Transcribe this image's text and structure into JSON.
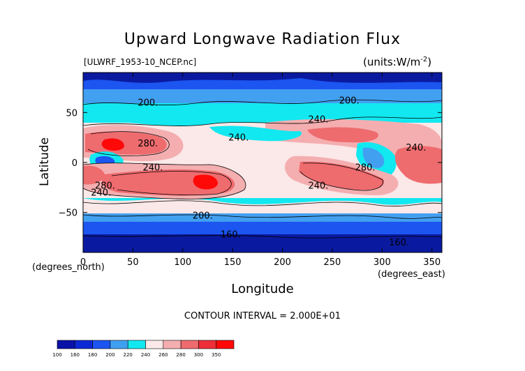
{
  "title": "Upward Longwave Radiation Flux",
  "file_label": "[ULWRF_1953-10_NCEP.nc]",
  "units_label": "(units:W/m^-2)",
  "ylabel": "Latitude",
  "xlabel": "Longitude",
  "y_unit_label": "(degrees_north)",
  "x_unit_label": "(degrees_east)",
  "contour_interval_label": "CONTOUR INTERVAL = 2.000E+01",
  "chart_data": {
    "type": "heatmap",
    "title": "Upward Longwave Radiation Flux",
    "xlabel": "Longitude",
    "ylabel": "Latitude",
    "x_unit": "(degrees_east)",
    "y_unit": "(degrees_north)",
    "xlim": [
      0,
      360
    ],
    "ylim": [
      -90,
      90
    ],
    "x_ticks": [
      0,
      50,
      100,
      150,
      200,
      250,
      300,
      350
    ],
    "y_ticks": [
      -50,
      0,
      50
    ],
    "contour_interval": 20,
    "contour_labels": [
      {
        "text": "200.",
        "lon": 65,
        "lat": 57
      },
      {
        "text": "200.",
        "lon": 267,
        "lat": 59
      },
      {
        "text": "240.",
        "lon": 236,
        "lat": 40
      },
      {
        "text": "240.",
        "lon": 156,
        "lat": 22
      },
      {
        "text": "280.",
        "lon": 65,
        "lat": 16
      },
      {
        "text": "240.",
        "lon": 334,
        "lat": 12
      },
      {
        "text": "240.",
        "lon": 70,
        "lat": -8
      },
      {
        "text": "280.",
        "lon": 283,
        "lat": -8
      },
      {
        "text": "280.",
        "lon": 22,
        "lat": -26
      },
      {
        "text": "240.",
        "lon": 18,
        "lat": -33
      },
      {
        "text": "240.",
        "lon": 236,
        "lat": -26
      },
      {
        "text": "200.",
        "lon": 120,
        "lat": -56
      },
      {
        "text": "160.",
        "lon": 148,
        "lat": -75
      },
      {
        "text": "160.",
        "lon": 317,
        "lat": -83
      }
    ],
    "colorbar": {
      "labels": [
        "100",
        "160",
        "180",
        "200",
        "220",
        "240",
        "260",
        "280",
        "300",
        "350"
      ],
      "colors": [
        "#0a12a8",
        "#0c2ad4",
        "#1c55f0",
        "#3fa0f0",
        "#12e8f0",
        "#fbe8e8",
        "#f4aeb0",
        "#ee6b6e",
        "#ee2e38",
        "#ff0808"
      ]
    },
    "map_colors": {
      "very_low": "#0a1aa0",
      "low": "#1c55f0",
      "mid_low": "#42a0f0",
      "mid": "#12e8f0",
      "neutral": "#fbe8e8",
      "mid_high": "#f4aeb0",
      "high": "#ee6b6e",
      "very_high": "#ee2e38",
      "peak": "#ff0808"
    }
  }
}
